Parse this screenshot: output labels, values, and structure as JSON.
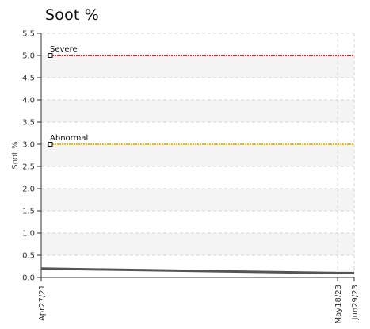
{
  "chart_data": {
    "type": "line",
    "title": "Soot %",
    "xlabel": "",
    "ylabel": "Soot %",
    "x_ticks": [
      "Apr27/21",
      "May18/23",
      "Jun29/23"
    ],
    "xlim": [
      "2021-04-27",
      "2023-06-29"
    ],
    "ylim": [
      0,
      5.5
    ],
    "y_ticks": [
      "0.0",
      "0.5",
      "1.0",
      "1.5",
      "2.0",
      "2.5",
      "3.0",
      "3.5",
      "4.0",
      "4.5",
      "5.0",
      "5.5"
    ],
    "grid": true,
    "thresholds": [
      {
        "label": "Severe",
        "value": 5.0,
        "color": "#e8242b"
      },
      {
        "label": "Abnormal",
        "value": 3.0,
        "color": "#f2bd00"
      }
    ],
    "series": [
      {
        "color": "#555555",
        "x": [
          "2021-04-27",
          "2023-05-18",
          "2023-06-29"
        ],
        "y": [
          0.2,
          0.1,
          0.1
        ]
      }
    ]
  }
}
